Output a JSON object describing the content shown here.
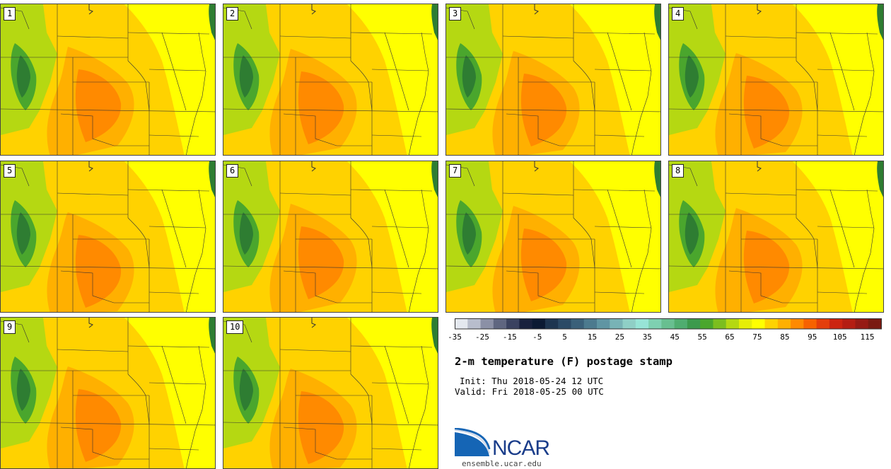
{
  "figure": {
    "title": "2-m temperature (F) postage stamp",
    "init": "Init: Thu 2018-05-24 12 UTC",
    "valid": "Valid: Fri 2018-05-25 00 UTC"
  },
  "panels": [
    "1",
    "2",
    "3",
    "4",
    "5",
    "6",
    "7",
    "8",
    "9",
    "10"
  ],
  "colorbar": {
    "min": -35,
    "max": 120,
    "step": 5,
    "tick_labels": [
      "-35",
      "-25",
      "-15",
      "-5",
      "5",
      "15",
      "25",
      "35",
      "45",
      "55",
      "65",
      "75",
      "85",
      "95",
      "105",
      "115"
    ],
    "colors": [
      "#e4e8ef",
      "#b8bdcc",
      "#8b90a6",
      "#5f6680",
      "#3a4260",
      "#18213d",
      "#0b1a33",
      "#1d3550",
      "#2b4a66",
      "#3a6079",
      "#4c7a8e",
      "#5f95a3",
      "#78b3b6",
      "#8fcfc6",
      "#97e4d6",
      "#7ed0b1",
      "#68bf90",
      "#4fad70",
      "#3c9a4d",
      "#4aa62d",
      "#7cbe1f",
      "#b5d812",
      "#e6ee07",
      "#ffff00",
      "#ffd200",
      "#ffb000",
      "#ff8a00",
      "#f76200",
      "#e43e0b",
      "#cc2410",
      "#b41d12",
      "#961a14",
      "#7a1a12"
    ]
  },
  "logo": {
    "name": "NCAR",
    "url": "ensemble.ucar.edu"
  },
  "colors": {
    "light_yellow": "#ffff00",
    "yellow_orange": "#ffd200",
    "orange": "#ffb000",
    "dark_orange": "#ff8a00",
    "yellow_green": "#b5d812",
    "green": "#4aa62d",
    "dark_green": "#2e7d32",
    "border": "#333333"
  }
}
